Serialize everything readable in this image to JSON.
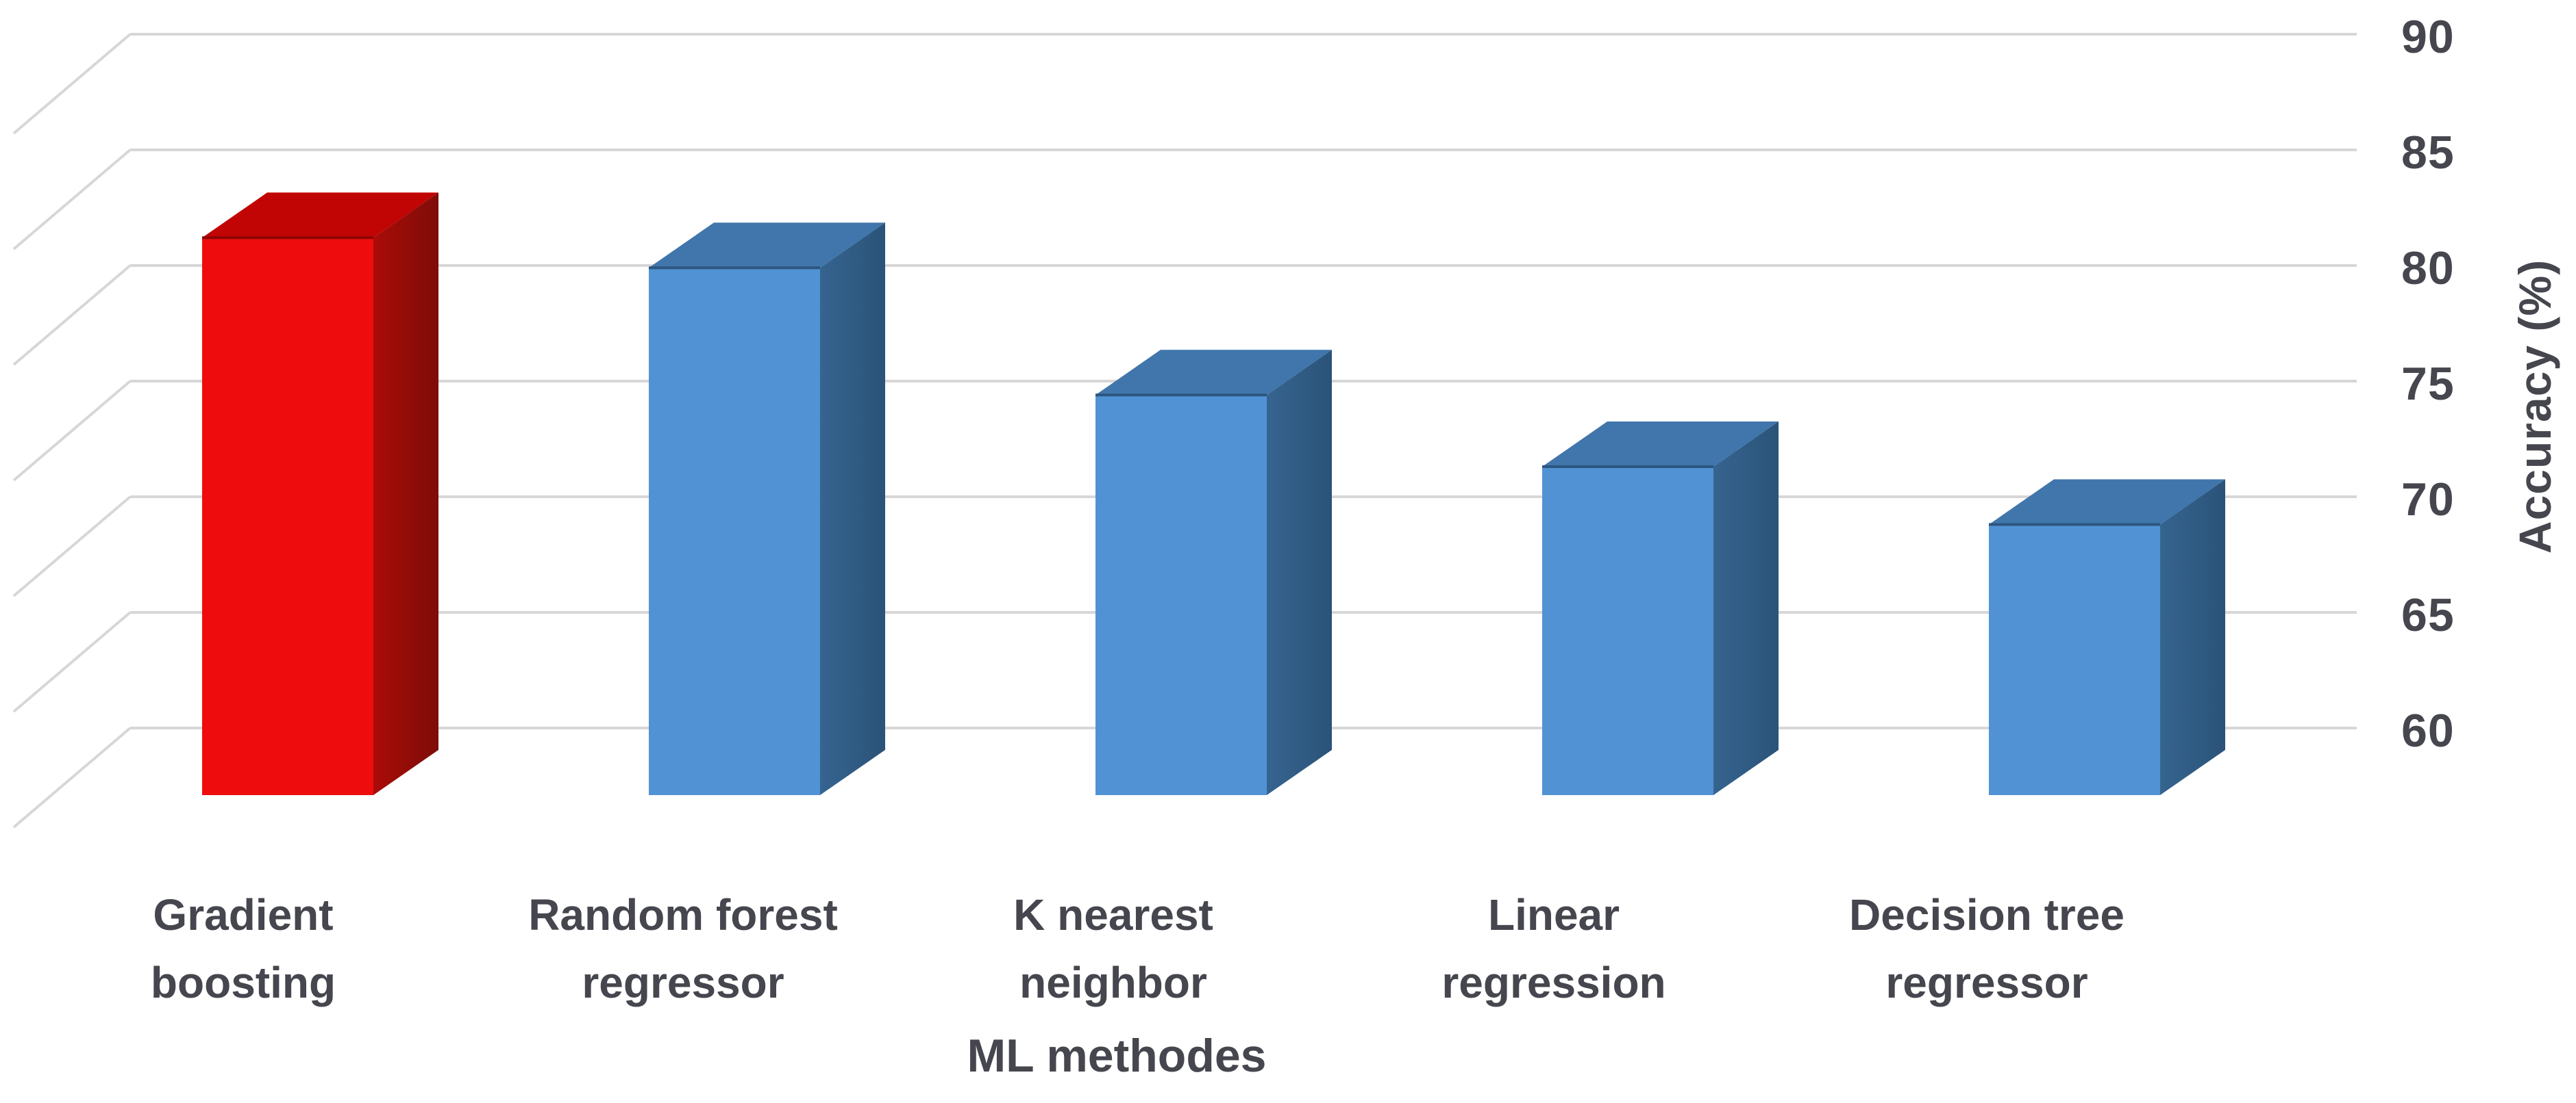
{
  "page": {
    "background": "#ffffff"
  },
  "chart_data": {
    "type": "bar",
    "style": "3d-column",
    "title": "",
    "xlabel": "ML methodes",
    "ylabel": "Accuracy (%)",
    "categories": [
      "Gradient boosting",
      "Random forest regressor",
      "K nearest neighbor",
      "Linear regression",
      "Decision tree regressor"
    ],
    "category_lines": [
      [
        "Gradient",
        "boosting"
      ],
      [
        "Random forest",
        "regressor"
      ],
      [
        "K nearest",
        "neighbor"
      ],
      [
        "Linear",
        "regression"
      ],
      [
        "Decision tree",
        "regressor"
      ]
    ],
    "values": [
      81.2,
      79.9,
      74.4,
      71.3,
      68.8
    ],
    "unit": "%",
    "highlight_index": 0,
    "yticks": [
      "90",
      "85",
      "80",
      "75",
      "70",
      "65",
      "60"
    ],
    "ytick_values": [
      90,
      85,
      80,
      75,
      70,
      65,
      60
    ],
    "ylim": [
      57,
      91.5
    ],
    "grid": true,
    "legend_position": "none",
    "colors": {
      "highlight_front": "#ee0d0c",
      "highlight_top": "#c00504",
      "highlight_side_near": "#aa0b08",
      "highlight_side_far": "#7e0d08",
      "highlight_edge": "#8c0503",
      "default_front": "#5192d4",
      "default_top": "#4076ab",
      "default_side_near": "#35648f",
      "default_side_far": "#2b5379",
      "default_edge": "#2d567e",
      "gridline": "#d7d7d7",
      "text": "#45464e"
    }
  }
}
